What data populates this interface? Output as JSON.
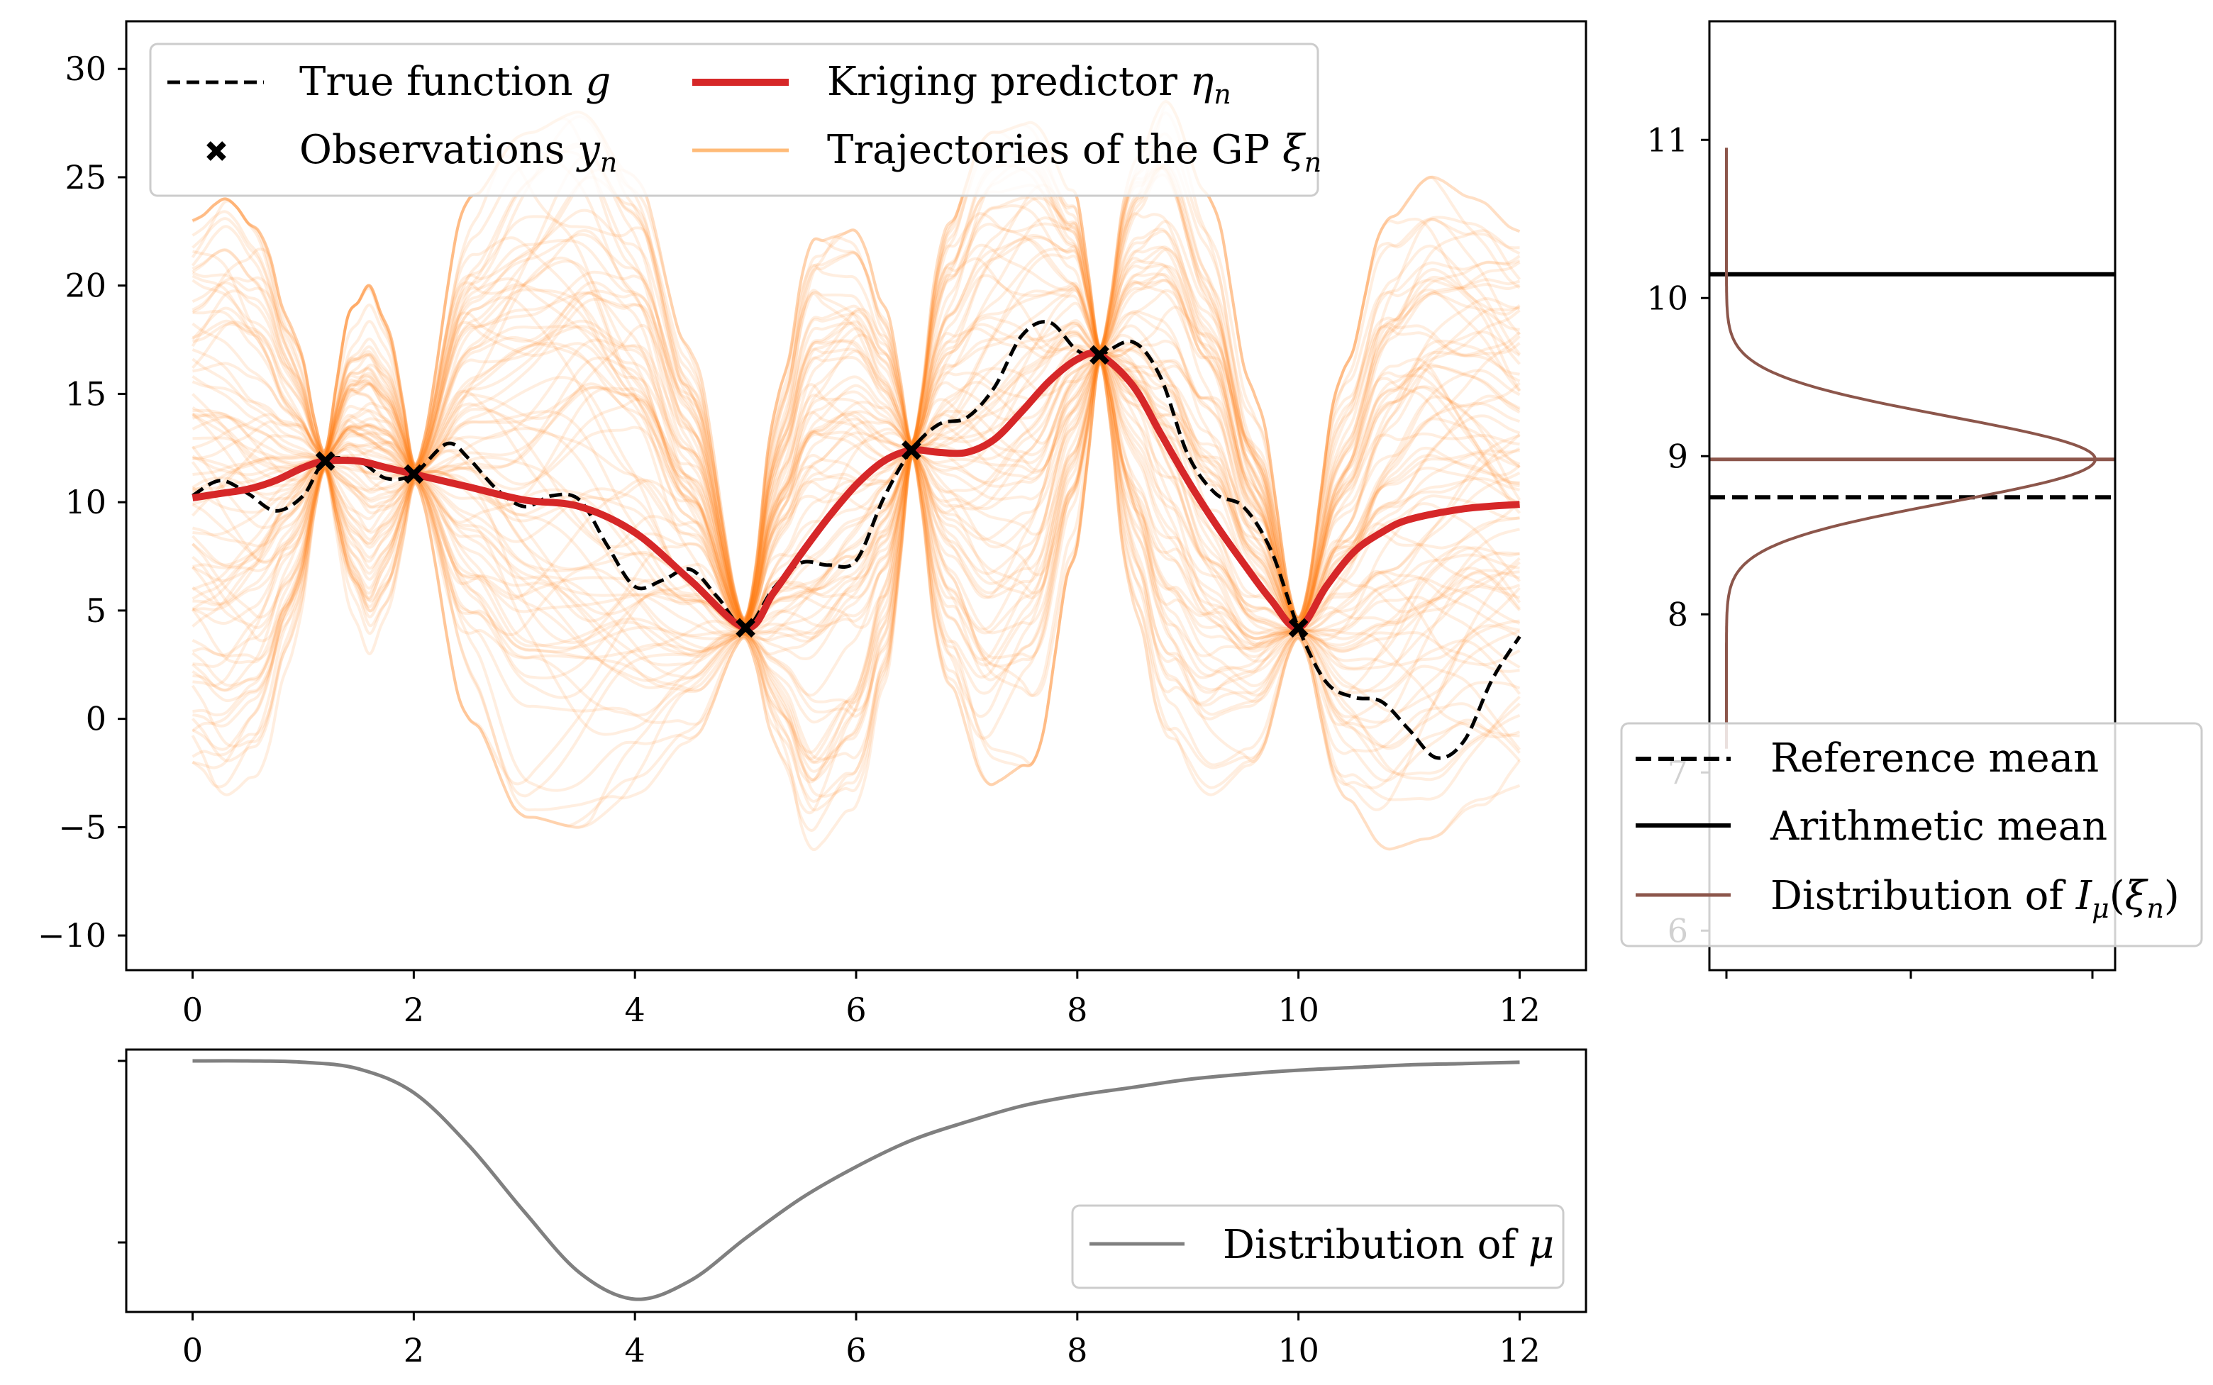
{
  "chart_data": [
    {
      "panel": "main",
      "type": "line",
      "xlim": [
        -0.6,
        12.6
      ],
      "ylim": [
        -11.6,
        32.2
      ],
      "xticks": [
        0,
        2,
        4,
        6,
        8,
        10,
        12
      ],
      "xtick_labels": [
        "0",
        "2",
        "4",
        "6",
        "8",
        "10",
        "12"
      ],
      "yticks": [
        -10,
        -5,
        0,
        5,
        10,
        15,
        20,
        25,
        30
      ],
      "ytick_labels": [
        "−10",
        "−5",
        "0",
        "5",
        "10",
        "15",
        "20",
        "25",
        "30"
      ],
      "grid": false,
      "legend": {
        "placement": "upper-left",
        "columns": 2,
        "entries": [
          {
            "label": "True function",
            "math": "g",
            "style": "dashed",
            "color": "#000000"
          },
          {
            "label": "Kriging predictor",
            "math": "η",
            "sub": "n",
            "style": "solid-thick",
            "color": "#d62728"
          },
          {
            "label": "Observations",
            "math": "y",
            "sub": "n",
            "style": "x-marker",
            "color": "#000000"
          },
          {
            "label": "Trajectories of the GP",
            "math": "ξ",
            "sub": "n",
            "style": "solid",
            "color": "#ffbb78"
          }
        ]
      },
      "observations": {
        "x": [
          1.2,
          2.0,
          5.0,
          6.5,
          8.2,
          10.0
        ],
        "y": [
          11.9,
          11.3,
          4.2,
          12.4,
          16.8,
          4.2
        ]
      },
      "true_function": {
        "x": [
          0,
          0.25,
          0.5,
          0.75,
          1.0,
          1.2,
          1.5,
          1.75,
          2.0,
          2.3,
          2.5,
          2.75,
          3.0,
          3.25,
          3.5,
          3.75,
          4.0,
          4.25,
          4.5,
          4.75,
          5.0,
          5.25,
          5.5,
          5.75,
          6.0,
          6.25,
          6.5,
          6.75,
          7.0,
          7.25,
          7.5,
          7.75,
          8.0,
          8.2,
          8.5,
          8.75,
          9.0,
          9.25,
          9.5,
          9.75,
          10.0,
          10.25,
          10.5,
          10.75,
          11.0,
          11.25,
          11.5,
          11.75,
          12.0
        ],
        "y": [
          10.3,
          11.0,
          10.4,
          9.6,
          10.3,
          11.9,
          11.9,
          11.1,
          11.3,
          12.7,
          12.0,
          10.6,
          9.8,
          10.3,
          10.1,
          8.0,
          6.1,
          6.4,
          6.9,
          5.6,
          4.2,
          6.0,
          7.2,
          7.1,
          7.3,
          10.2,
          12.4,
          13.6,
          13.9,
          15.3,
          17.7,
          18.3,
          17.0,
          16.8,
          17.4,
          15.8,
          12.2,
          10.4,
          9.8,
          7.8,
          4.2,
          1.7,
          1.0,
          0.8,
          -0.5,
          -1.8,
          -1.0,
          1.8,
          3.8
        ]
      },
      "kriging_predictor": {
        "x": [
          0,
          0.25,
          0.5,
          0.75,
          1.0,
          1.2,
          1.5,
          1.75,
          2.0,
          2.5,
          3.0,
          3.5,
          4.0,
          4.5,
          5.0,
          5.25,
          5.5,
          5.75,
          6.0,
          6.25,
          6.5,
          6.75,
          7.0,
          7.25,
          7.5,
          7.75,
          8.0,
          8.2,
          8.5,
          8.75,
          9.0,
          9.25,
          9.5,
          9.75,
          10.0,
          10.25,
          10.5,
          10.75,
          11.0,
          11.5,
          12.0
        ],
        "y": [
          10.2,
          10.4,
          10.6,
          11.0,
          11.6,
          11.9,
          11.9,
          11.6,
          11.3,
          10.7,
          10.1,
          9.8,
          8.6,
          6.4,
          4.2,
          5.8,
          7.6,
          9.3,
          10.8,
          11.9,
          12.4,
          12.3,
          12.3,
          12.9,
          14.2,
          15.6,
          16.6,
          16.8,
          15.4,
          13.2,
          11.0,
          9.0,
          7.2,
          5.5,
          4.2,
          6.1,
          7.7,
          8.6,
          9.2,
          9.7,
          9.9
        ]
      },
      "gp_band": {
        "x": [
          0,
          0.3,
          0.6,
          0.9,
          1.2,
          1.4,
          1.6,
          1.8,
          2.0,
          2.5,
          3.0,
          3.5,
          4.0,
          4.5,
          5.0,
          5.3,
          5.6,
          6.0,
          6.3,
          6.5,
          6.8,
          7.2,
          7.6,
          8.0,
          8.2,
          8.5,
          8.8,
          9.2,
          9.6,
          10.0,
          10.4,
          10.8,
          11.2,
          11.6,
          12.0
        ],
        "lower": [
          -2.0,
          -3.5,
          -2.5,
          3.0,
          11.4,
          5.5,
          3.0,
          5.5,
          10.8,
          0.0,
          -4.5,
          -5.0,
          -3.5,
          -1.0,
          3.7,
          -1.5,
          -6.0,
          -4.0,
          2.5,
          12.0,
          2.0,
          -3.0,
          -2.0,
          8.0,
          16.4,
          5.5,
          -1.0,
          -3.5,
          -2.0,
          3.7,
          -3.5,
          -6.0,
          -5.5,
          -4.0,
          -3.5
        ],
        "upper": [
          23.0,
          24.0,
          22.5,
          18.0,
          12.4,
          18.5,
          20.0,
          17.5,
          11.8,
          24.0,
          27.0,
          28.0,
          25.0,
          17.0,
          4.7,
          15.0,
          22.0,
          22.5,
          18.5,
          12.8,
          22.5,
          27.0,
          27.5,
          24.0,
          17.2,
          25.5,
          28.5,
          24.0,
          15.0,
          4.7,
          16.0,
          23.0,
          25.0,
          24.0,
          22.5
        ],
        "color": "#ff7f0e"
      }
    },
    {
      "panel": "right",
      "type": "line",
      "xticks_unlabeled": 3,
      "ylim": [
        5.75,
        11.75
      ],
      "yticks": [
        6,
        7,
        8,
        9,
        10,
        11
      ],
      "ytick_labels": [
        "6",
        "7",
        "8",
        "9",
        "10",
        "11"
      ],
      "grid": false,
      "reference_mean": 8.74,
      "arithmetic_mean": 10.15,
      "distribution_mean": 8.98,
      "distribution_sd": 0.27,
      "distribution_range": [
        7.15,
        10.95
      ],
      "legend": {
        "placement": "lower-left",
        "entries": [
          {
            "label": "Reference mean",
            "style": "dashed",
            "color": "#000000"
          },
          {
            "label": "Arithmetic mean",
            "style": "solid",
            "color": "#000000"
          },
          {
            "label": "Distribution of",
            "math": "I",
            "math_sub": "μ",
            "arg": "ξ",
            "arg_sub": "n",
            "style": "solid",
            "color": "#8c564b"
          }
        ]
      }
    },
    {
      "panel": "bottom",
      "type": "line",
      "xlim": [
        -0.6,
        12.6
      ],
      "xticks": [
        0,
        2,
        4,
        6,
        8,
        10,
        12
      ],
      "xtick_labels": [
        "0",
        "2",
        "4",
        "6",
        "8",
        "10",
        "12"
      ],
      "yticks_unlabeled": 2,
      "grid": false,
      "series": [
        {
          "name": "Distribution of",
          "math": "μ",
          "color": "#808080",
          "x": [
            0,
            0.5,
            1.0,
            1.5,
            2.0,
            2.5,
            3.0,
            3.5,
            4.0,
            4.5,
            5.0,
            5.5,
            6.0,
            6.5,
            7.0,
            7.5,
            8.0,
            8.5,
            9.0,
            9.5,
            10.0,
            10.5,
            11.0,
            11.5,
            12.0
          ],
          "y": [
            1.0,
            1.0,
            0.995,
            0.97,
            0.88,
            0.68,
            0.43,
            0.2,
            0.1,
            0.17,
            0.33,
            0.48,
            0.6,
            0.7,
            0.77,
            0.83,
            0.87,
            0.9,
            0.93,
            0.95,
            0.965,
            0.975,
            0.985,
            0.99,
            0.995
          ]
        }
      ],
      "legend": {
        "placement": "lower-right"
      }
    }
  ]
}
